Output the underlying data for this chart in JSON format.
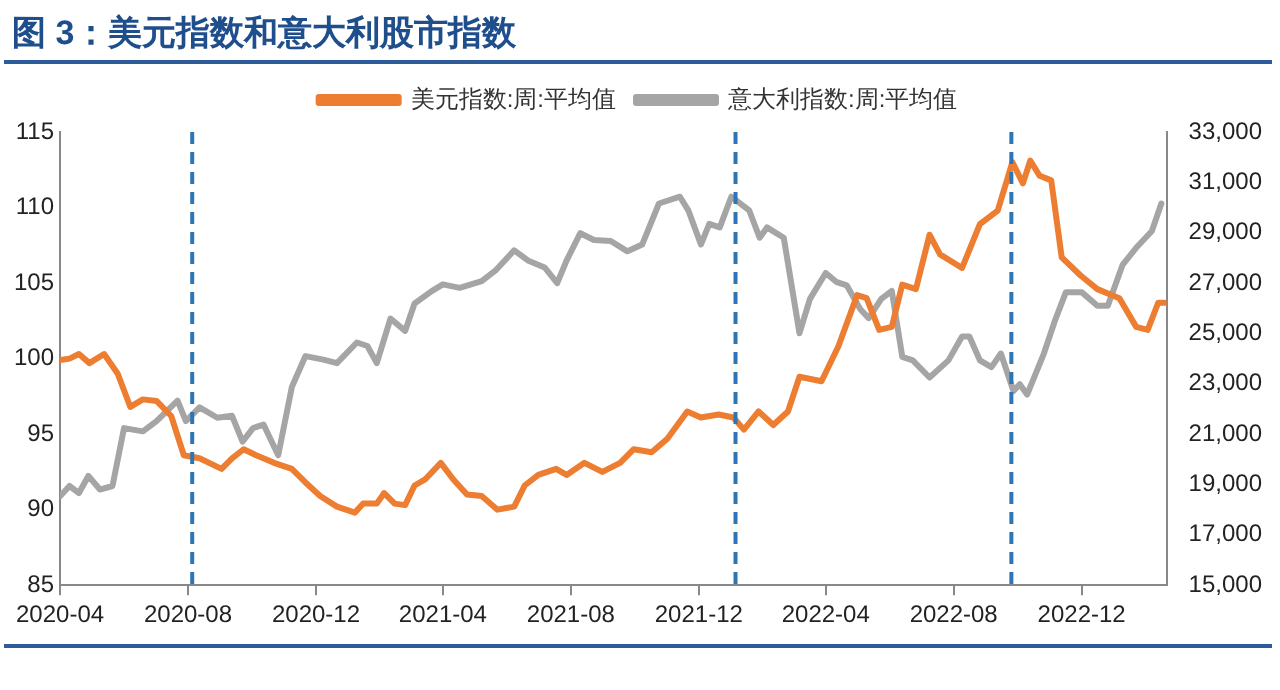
{
  "chart_data": {
    "type": "line",
    "title": "图 3：美元指数和意大利股市指数",
    "xlim": [
      "2020-04-01",
      "2023-02-20"
    ],
    "xticks": [
      "2020-04",
      "2020-08",
      "2020-12",
      "2021-04",
      "2021-08",
      "2021-12",
      "2022-04",
      "2022-08",
      "2022-12"
    ],
    "ylim": [
      85,
      115
    ],
    "yticks": [
      85,
      90,
      95,
      100,
      105,
      110,
      115
    ],
    "y2lim": [
      15000,
      33000
    ],
    "y2ticks": [
      {
        "value": 15000,
        "label": "15,000"
      },
      {
        "value": 17000,
        "label": "17,000"
      },
      {
        "value": 19000,
        "label": "19,000"
      },
      {
        "value": 21000,
        "label": "21,000"
      },
      {
        "value": 23000,
        "label": "23,000"
      },
      {
        "value": 25000,
        "label": "25,000"
      },
      {
        "value": 27000,
        "label": "27,000"
      },
      {
        "value": 29000,
        "label": "29,000"
      },
      {
        "value": 31000,
        "label": "31,000"
      },
      {
        "value": 33000,
        "label": "33,000"
      }
    ],
    "grid": false,
    "legend": "top",
    "marker": "none",
    "line_style": "solid",
    "ref_lines": [
      {
        "axis": "x",
        "value": "2020-08-05",
        "color": "#2e75b6",
        "line_style": "dashed"
      },
      {
        "axis": "x",
        "value": "2022-01-05",
        "color": "#2e75b6",
        "line_style": "dashed"
      },
      {
        "axis": "x",
        "value": "2022-09-25",
        "color": "#2e75b6",
        "line_style": "dashed"
      }
    ],
    "series": [
      {
        "name": "美元指数:周:平均值",
        "color": "#ed7d31",
        "x": [
          "2020-04-01",
          "2020-04-10",
          "2020-04-19",
          "2020-04-29",
          "2020-05-13",
          "2020-05-26",
          "2020-06-07",
          "2020-06-19",
          "2020-07-02",
          "2020-07-16",
          "2020-07-28",
          "2020-08-12",
          "2020-09-02",
          "2020-09-12",
          "2020-09-23",
          "2020-10-05",
          "2020-10-22",
          "2020-11-08",
          "2020-11-21",
          "2020-12-05",
          "2020-12-21",
          "2021-01-07",
          "2021-01-15",
          "2021-01-28",
          "2021-02-04",
          "2021-02-14",
          "2021-02-24",
          "2021-03-05",
          "2021-03-15",
          "2021-03-30",
          "2021-04-11",
          "2021-04-24",
          "2021-05-08",
          "2021-05-23",
          "2021-06-08",
          "2021-06-18",
          "2021-07-01",
          "2021-07-18",
          "2021-07-28",
          "2021-08-14",
          "2021-08-31",
          "2021-09-17",
          "2021-09-30",
          "2021-10-17",
          "2021-11-01",
          "2021-11-20",
          "2021-12-03",
          "2021-12-20",
          "2022-01-03",
          "2022-01-13",
          "2022-01-27",
          "2022-02-10",
          "2022-02-24",
          "2022-03-07",
          "2022-03-28",
          "2022-04-13",
          "2022-05-01",
          "2022-05-10",
          "2022-05-22",
          "2022-06-03",
          "2022-06-13",
          "2022-06-26",
          "2022-07-09",
          "2022-07-19",
          "2022-08-09",
          "2022-08-26",
          "2022-09-12",
          "2022-09-26",
          "2022-10-06",
          "2022-10-13",
          "2022-10-22",
          "2022-11-02",
          "2022-11-12",
          "2022-11-30",
          "2022-12-16",
          "2023-01-06",
          "2023-01-22",
          "2023-02-02",
          "2023-02-12",
          "2023-02-18"
        ],
        "values": [
          99.9,
          100.0,
          100.3,
          99.7,
          100.3,
          99.0,
          96.8,
          97.3,
          97.2,
          96.2,
          93.6,
          93.4,
          92.7,
          93.4,
          94.0,
          93.6,
          93.1,
          92.7,
          91.8,
          90.9,
          90.2,
          89.8,
          90.4,
          90.4,
          91.1,
          90.4,
          90.3,
          91.6,
          92.0,
          93.1,
          92.0,
          91.0,
          90.9,
          90.0,
          90.2,
          91.6,
          92.3,
          92.7,
          92.3,
          93.1,
          92.5,
          93.1,
          94.0,
          93.8,
          94.7,
          96.5,
          96.1,
          96.3,
          96.1,
          95.3,
          96.5,
          95.6,
          96.5,
          98.8,
          98.5,
          100.8,
          104.2,
          104.0,
          101.9,
          102.1,
          104.9,
          104.6,
          108.2,
          106.9,
          106.0,
          108.9,
          109.8,
          113.0,
          111.6,
          113.1,
          112.1,
          111.8,
          106.7,
          105.5,
          104.6,
          104.0,
          102.1,
          101.9,
          103.7,
          103.7
        ]
      },
      {
        "name": "意大利指数:周:平均值",
        "color": "#a5a5a5",
        "axis": "y2",
        "x": [
          "2020-04-01",
          "2020-04-10",
          "2020-04-19",
          "2020-04-28",
          "2020-05-09",
          "2020-05-21",
          "2020-06-01",
          "2020-06-19",
          "2020-07-02",
          "2020-07-22",
          "2020-07-30",
          "2020-08-12",
          "2020-08-29",
          "2020-09-12",
          "2020-09-22",
          "2020-10-02",
          "2020-10-12",
          "2020-10-26",
          "2020-11-08",
          "2020-11-21",
          "2020-12-08",
          "2020-12-21",
          "2021-01-09",
          "2021-01-19",
          "2021-01-28",
          "2021-02-10",
          "2021-02-24",
          "2021-03-05",
          "2021-03-21",
          "2021-04-01",
          "2021-04-17",
          "2021-05-08",
          "2021-05-21",
          "2021-06-08",
          "2021-06-21",
          "2021-07-07",
          "2021-07-19",
          "2021-07-28",
          "2021-08-10",
          "2021-08-23",
          "2021-09-08",
          "2021-09-24",
          "2021-10-08",
          "2021-10-24",
          "2021-11-13",
          "2021-11-21",
          "2021-12-03",
          "2021-12-11",
          "2021-12-21",
          "2022-01-01",
          "2022-01-18",
          "2022-01-28",
          "2022-02-04",
          "2022-02-20",
          "2022-03-07",
          "2022-03-17",
          "2022-04-01",
          "2022-04-11",
          "2022-04-21",
          "2022-05-04",
          "2022-05-12",
          "2022-05-24",
          "2022-06-03",
          "2022-06-13",
          "2022-06-23",
          "2022-07-09",
          "2022-07-27",
          "2022-08-09",
          "2022-08-16",
          "2022-08-26",
          "2022-09-06",
          "2022-09-15",
          "2022-09-27",
          "2022-10-03",
          "2022-10-10",
          "2022-10-26",
          "2022-11-06",
          "2022-11-16",
          "2022-12-01",
          "2022-12-16",
          "2022-12-26",
          "2023-01-09",
          "2023-01-22",
          "2023-02-06",
          "2023-02-15"
        ],
        "values": [
          18530,
          18940,
          18660,
          19340,
          18800,
          18940,
          21240,
          21110,
          21520,
          22330,
          21520,
          22060,
          21650,
          21730,
          20700,
          21240,
          21380,
          20160,
          22870,
          24100,
          23960,
          23820,
          24640,
          24500,
          23820,
          25590,
          25100,
          26190,
          26670,
          26950,
          26810,
          27080,
          27490,
          28300,
          27900,
          27620,
          27000,
          27900,
          28980,
          28710,
          28670,
          28260,
          28530,
          30160,
          30430,
          29890,
          28530,
          29350,
          29210,
          30430,
          29890,
          28800,
          29210,
          28800,
          25010,
          26370,
          27400,
          27050,
          26910,
          25960,
          25610,
          26370,
          26690,
          24070,
          23930,
          23250,
          23930,
          24880,
          24880,
          23930,
          23660,
          24200,
          22710,
          22980,
          22570,
          24200,
          25560,
          26640,
          26640,
          26100,
          26100,
          27720,
          28400,
          29070,
          30160
        ]
      }
    ]
  }
}
